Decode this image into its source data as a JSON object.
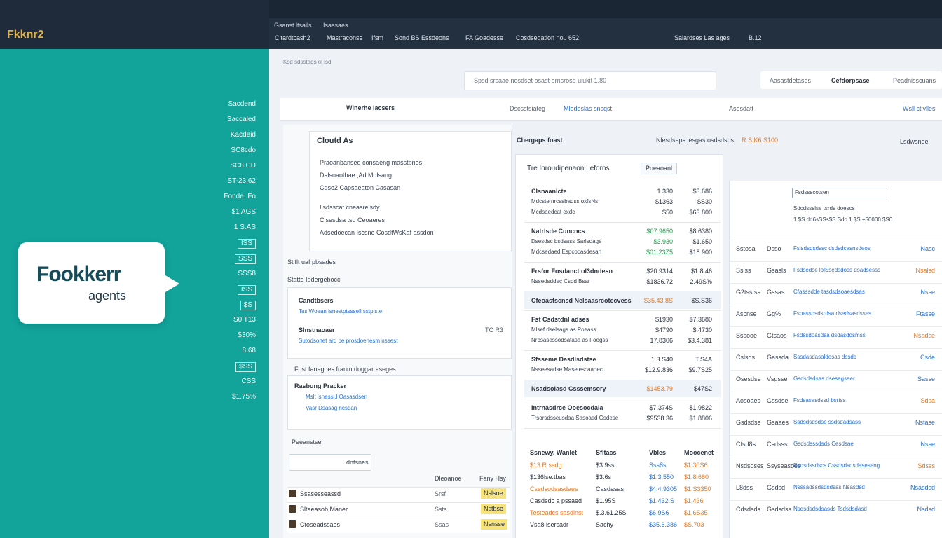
{
  "brand": "Fkknr2",
  "logo": {
    "title": "Fookkerr",
    "subtitle": "agents"
  },
  "side_values": [
    "Sacdend",
    "Saccaled",
    "Kacdeid",
    "SC8cdo",
    "SC8 CD",
    "ST-23.62",
    "Fonde. Fo",
    "$1 AGS",
    "1 S.AS",
    "ISS",
    "SSS",
    "SSS8",
    "ISS",
    "$S",
    "S0 T13",
    "$30%",
    "8.68",
    "$SS",
    "CSS",
    "$1.75%"
  ],
  "topbar": {
    "menu": [
      "Gsanst ltsails",
      "Isassaes"
    ],
    "tools": [
      "Cltardtcash2",
      "Mastraconse",
      "Ifsm",
      "Sond BS Essdeons",
      "FA Goadesse",
      "Cosdsegation nou 652"
    ],
    "right": [
      "Salardses Las ages",
      "B.12"
    ]
  },
  "breadcrumb": "Ksd sdsstads ol lsd",
  "search": "Spsd srsaae nosdset osast ornsrosd uiukit 1.80",
  "tabs": [
    "Aasastdetases",
    "Cefdorpsase",
    "Peadnisscuans"
  ],
  "subheader": {
    "left": "Wlnerhe lacsers",
    "mid1": "Dscsstsiateg",
    "mid2": "Mlodeslas snsqst",
    "right1": "Asosdatt",
    "right2": "Wsll ctivlles"
  },
  "accordion": {
    "title": "Cloutd As",
    "items": [
      "Praoanbansed consaeng masstbnes",
      "Dalsoaotbae ,Ad Mdlsang",
      "Cdse2 Capsaeaton Casasan",
      "Ilsdsscat cneasrelsdy",
      "Clsesdsa tsd Ceoaeres",
      "Adsedoecan Iscsne CosdtWsKaf assdon"
    ]
  },
  "sections": [
    "Stiflt uaf pbsades",
    "Statte Iddergebocc"
  ],
  "agents": [
    {
      "name": "Candtbsers",
      "desc": "Tas Woean lsnestptsssell sstplste"
    },
    {
      "name": "Slnstnaoaer",
      "desc": "Sutodsonet ard be prosdoehesm nssest",
      "meta": "TC R3"
    }
  ],
  "tasks": {
    "title": "Fost fanagoes franm doggar aseges",
    "name": "Rasbung Pracker",
    "items": [
      "Mslt lsnessl.l Oasasdsen",
      "Vasr Dsasag ncsdan"
    ]
  },
  "mini": {
    "title": "Peeanstse",
    "filter": "dntsnes",
    "head": [
      "Dleoanoe",
      "Fany Hsy"
    ],
    "rows": [
      [
        "Ssasesseassd",
        "Srsf",
        "Nslsoe"
      ],
      [
        "Sltaeasob Maner",
        "Ssts",
        "Nstbse"
      ],
      [
        "Cfoseadssaes",
        "Ssas",
        "Nsnsse"
      ]
    ]
  },
  "center": {
    "title": "Cbergaps foast",
    "note": "Nlesdseps iesgas osdsdsbs",
    "note_val": "R S.K6 S100",
    "link": "Lsdwsneel",
    "table_title": "Tre Inroudipenaon Leforns",
    "button": "Poeaoanl",
    "groups": [
      [
        [
          "Clsnaanlcte",
          "1 330",
          "$3.686"
        ],
        [
          "Mdcste nrcssbadss oxfsNs",
          "$1363",
          "$S30"
        ],
        [
          "Mcdsaedcat exdc",
          "$50",
          "$63.800"
        ]
      ],
      [
        [
          "Natrlsde Cuncncs",
          "$07.9650",
          "$8.6380"
        ],
        [
          "Dsesdsc bsdsass Sarlsdage",
          "$3.930",
          "$1.650"
        ],
        [
          "Mdcsedaed Espcocasdesan",
          "$01.23Z5",
          "$18.900"
        ]
      ],
      [
        [
          "Frsfor Fosdanct ol3dndesn",
          "$20.9314",
          "$1.8.46"
        ],
        [
          "Nssedsddec Csdd Bsar",
          "$1836.72",
          "2.49S%"
        ]
      ],
      [
        [
          "Cfeoastscnsd Nelsaasrcotecvess",
          "$35.43.8S",
          "$S.S36"
        ]
      ],
      [
        [
          "Fst Csdstdnl adses",
          "$1930",
          "$7.3680"
        ],
        [
          "Mlsef dselsags as Poeass",
          "$4790",
          "$.4730"
        ],
        [
          "Nrbsasessodsatasa as Foegss",
          "17.8306",
          "$3.4.381"
        ]
      ],
      [
        [
          "Sfsseme Dasdlsdstse",
          "1.3.S40",
          "T.S4A"
        ],
        [
          "Nsseesadse Maselescaadec",
          "$12.9.836",
          "$9.7S25"
        ]
      ],
      [
        [
          "Nsadsoiasd Csssemsory",
          "$1453.79",
          "$47S2"
        ]
      ],
      [
        [
          "Intrnasdrce Ooesocdala",
          "$7.374S",
          "$1.9822"
        ],
        [
          "Trsorsdsseusdaa Sasoasd Gsdese",
          "$9538.36",
          "$1.8806"
        ]
      ]
    ],
    "bottom": {
      "head": [
        "Ssnewy. Wanlet",
        "Sfltacs",
        "Vbles",
        "Moocenet"
      ],
      "rows": [
        [
          "$13 R ssdg",
          "$3.9ss",
          "Sss8s",
          "$1.30S6"
        ],
        [
          "$136lse.tbas",
          "$3.6s",
          "$1.3.550",
          "$1.8.680"
        ],
        [
          "Cssdsodsasdaes",
          "Casdasas",
          "$4.4.9305",
          "$1.S3350"
        ],
        [
          "Casdsdc a pssaed",
          "$1.95S",
          "$1.432.S",
          "$1.436"
        ],
        [
          "Testeadcs sasdlnst",
          "$.3.61.25S",
          "$6.9S6",
          "$1.6S35"
        ],
        [
          "Vsa8 lsersadr",
          "Sachy",
          "$35.6.386",
          "$S.703"
        ]
      ]
    }
  },
  "right": {
    "filter": "Fsdssscotsen",
    "filter2": "Sdcdssslse tsrds doescs",
    "filter3": "1 $S.dd6sSSs$S.Sdo 1 $S +50000 $S0",
    "rows": [
      [
        "Sstosa",
        "Dsso",
        "Fslsdsdsdssc dsdsdcasnsdeos",
        "Nasc"
      ],
      [
        "Sslss",
        "Gsasls",
        "Fsdsedse lolSsedsdoss dsadsesss",
        "Nsalsd"
      ],
      [
        "G2tsstss",
        "Gssas",
        "Cfasssdde tasdsdsoaesdsas",
        "Nsse"
      ],
      [
        "Ascnse",
        "Gg%",
        "Fsoassdsdsrdsa dsedsasdsses",
        "Ftasse"
      ],
      [
        "Sssooe",
        "Gtsaos",
        "Fsdssdoasdsa dsdasddsmss",
        "Nsadse"
      ],
      [
        "Cslsds",
        "Gassda",
        "Sssdasdasaldesas dssds",
        "Csde"
      ],
      [
        "Osesdse",
        "Vsgsse",
        "Gsdsdsdsas dsesagseer",
        "Sasse"
      ],
      [
        "Aosoaes",
        "Gssdse",
        "Fsdsasasdssd bsrtss",
        "Sdsa"
      ],
      [
        "Gsdsdse",
        "Gsaaes",
        "Ssdsdsdsdse ssdsdadsass",
        "Nstase"
      ],
      [
        "Cfsd8s",
        "Csdsss",
        "Gsdsdsssdsds Cesdsae",
        "Nsse"
      ],
      [
        "Nsdsoses",
        "Ssyseasoes",
        "Rsdsdssdscs Cssdsdsdsdaseseng",
        "Sdsss"
      ],
      [
        "L8dss",
        "Gsdsd",
        "Nsssadssdsdsdsas Nsasdsd",
        "Nsasdsd"
      ],
      [
        "Cdsdsds",
        "Gsdsdss",
        "Nsdsdsdsdsasds Tsdsdsdasd",
        "Nsdsd"
      ]
    ]
  }
}
